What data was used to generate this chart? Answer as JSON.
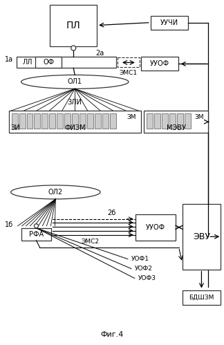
{
  "title": "Фиг.4",
  "labels": {
    "PL": "ПЛ",
    "UUCHI": "УУЧИ",
    "OF": "ОФ",
    "UUOF": "УУОФ",
    "LL": "ЛЛ",
    "EMS1": "ЭМС1",
    "OL1": "ОЛ1",
    "ZLI": "ЗЛИ",
    "ZI": "ЗИ",
    "FIZM": "ФИЗМ",
    "ZM": "ЗМ",
    "MEVU": "МЭВУ",
    "OL2": "ОЛ2",
    "RFA": "РФА",
    "label_2b": "2б",
    "UUUOF": "УУОФ",
    "EMS2": "ЭМС2",
    "UOF1": "УОФ1",
    "UOF2": "УОФ2",
    "UOF3": "УОФ3",
    "EVU": "ЭВУ",
    "BDSHZM": "БДШЗМ",
    "label_1a": "1а",
    "label_2a": "2а",
    "label_1b": "1б"
  }
}
